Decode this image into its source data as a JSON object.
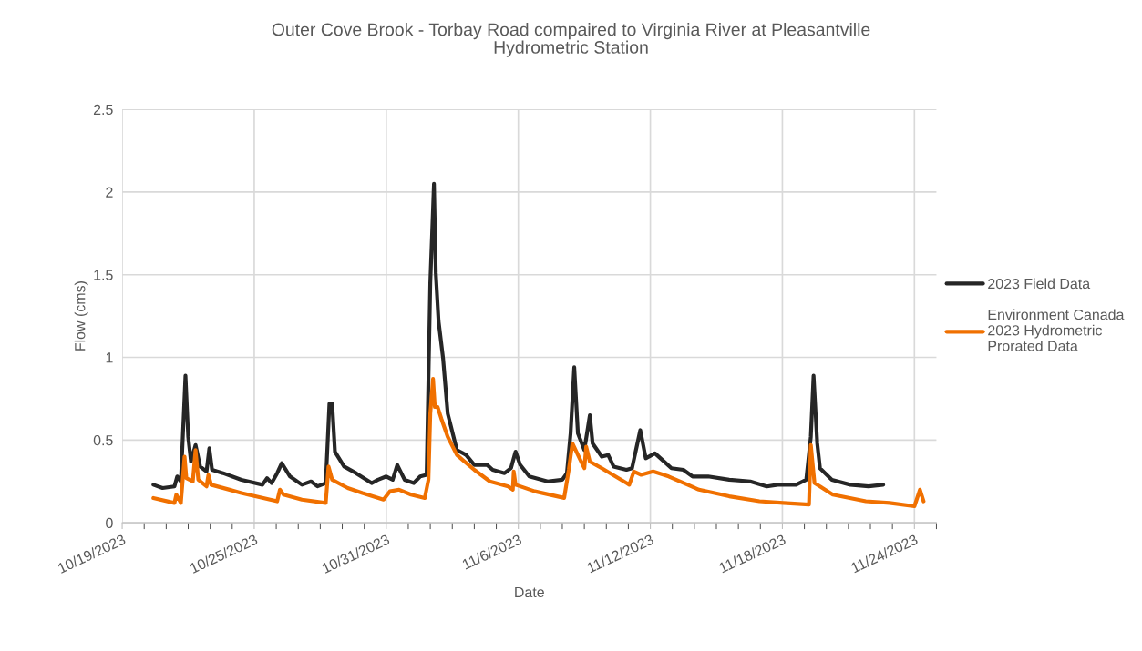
{
  "chart_data": {
    "type": "line",
    "title": "Outer Cove Brook - Torbay Road compaired to Virginia River at Pleasantville\nHydrometric Station",
    "xlabel": "Date",
    "ylabel": "Flow (cms)",
    "xlim": [
      "2023-10-19",
      "2023-11-25"
    ],
    "xticks": [
      {
        "value": "2023-10-19",
        "label": "10/19/2023"
      },
      {
        "value": "2023-10-25",
        "label": "10/25/2023"
      },
      {
        "value": "2023-10-31",
        "label": "10/31/2023"
      },
      {
        "value": "2023-11-06",
        "label": "11/6/2023"
      },
      {
        "value": "2023-11-12",
        "label": "11/12/2023"
      },
      {
        "value": "2023-11-18",
        "label": "11/18/2023"
      },
      {
        "value": "2023-11-24",
        "label": "11/24/2023"
      }
    ],
    "ylim": [
      0,
      2.5
    ],
    "yticks": [
      0,
      0.5,
      1,
      1.5,
      2,
      2.5
    ],
    "grid": true,
    "legend": "right",
    "marker": "none",
    "line_style": "solid",
    "series": [
      {
        "name": "2023 Field Data",
        "color": "#262626",
        "x": [
          "2023-10-20T10:00",
          "2023-10-20T20:00",
          "2023-10-21T09:00",
          "2023-10-21T12:00",
          "2023-10-21T16:00",
          "2023-10-21T21:00",
          "2023-10-22T00:00",
          "2023-10-22T03:00",
          "2023-10-22T08:00",
          "2023-10-22T13:00",
          "2023-10-22T20:00",
          "2023-10-22T23:00",
          "2023-10-23T02:00",
          "2023-10-23T14:00",
          "2023-10-24T10:00",
          "2023-10-25T09:00",
          "2023-10-25T14:00",
          "2023-10-25T19:00",
          "2023-10-26T01:00",
          "2023-10-26T06:00",
          "2023-10-26T15:00",
          "2023-10-27T04:00",
          "2023-10-27T14:00",
          "2023-10-27T21:00",
          "2023-10-28T06:00",
          "2023-10-28T10:00",
          "2023-10-28T13:00",
          "2023-10-28T16:00",
          "2023-10-29T02:00",
          "2023-10-29T15:00",
          "2023-10-30T08:00",
          "2023-10-30T15:00",
          "2023-10-31T00:00",
          "2023-10-31T07:00",
          "2023-10-31T12:00",
          "2023-10-31T20:00",
          "2023-11-01T06:00",
          "2023-11-01T13:00",
          "2023-11-01T20:00",
          "2023-11-02T00:00",
          "2023-11-02T04:00",
          "2023-11-02T06:00",
          "2023-11-02T09:00",
          "2023-11-02T14:00",
          "2023-11-02T19:00",
          "2023-11-03T05:00",
          "2023-11-03T15:00",
          "2023-11-04T00:00",
          "2023-11-04T14:00",
          "2023-11-04T20:00",
          "2023-11-05T09:00",
          "2023-11-05T16:00",
          "2023-11-05T21:00",
          "2023-11-06T02:00",
          "2023-11-06T12:00",
          "2023-11-07T08:00",
          "2023-11-08T00:00",
          "2023-11-08T05:00",
          "2023-11-08T09:00",
          "2023-11-08T13:00",
          "2023-11-08T17:00",
          "2023-11-09T00:00",
          "2023-11-09T06:00",
          "2023-11-09T09:00",
          "2023-11-09T19:00",
          "2023-11-10T02:00",
          "2023-11-10T08:00",
          "2023-11-10T22:00",
          "2023-11-11T04:00",
          "2023-11-11T13:00",
          "2023-11-11T19:00",
          "2023-11-12T05:00",
          "2023-11-12T13:00",
          "2023-11-12T23:00",
          "2023-11-13T12:00",
          "2023-11-13T22:00",
          "2023-11-14T15:00",
          "2023-11-15T14:00",
          "2023-11-16T13:00",
          "2023-11-17T07:00",
          "2023-11-17T19:00",
          "2023-11-18T15:00",
          "2023-11-19T02:00",
          "2023-11-19T07:00",
          "2023-11-19T10:00",
          "2023-11-19T14:00",
          "2023-11-19T17:00",
          "2023-11-20T06:00",
          "2023-11-21T02:00",
          "2023-11-21T22:00",
          "2023-11-22T14:00"
        ],
        "values": [
          0.23,
          0.21,
          0.22,
          0.28,
          0.25,
          0.89,
          0.52,
          0.37,
          0.47,
          0.34,
          0.31,
          0.45,
          0.32,
          0.3,
          0.26,
          0.23,
          0.27,
          0.24,
          0.3,
          0.36,
          0.28,
          0.23,
          0.25,
          0.22,
          0.24,
          0.72,
          0.72,
          0.43,
          0.34,
          0.3,
          0.24,
          0.26,
          0.28,
          0.26,
          0.35,
          0.26,
          0.24,
          0.28,
          0.29,
          1.45,
          2.05,
          1.51,
          1.22,
          0.99,
          0.66,
          0.44,
          0.41,
          0.35,
          0.35,
          0.32,
          0.3,
          0.33,
          0.43,
          0.35,
          0.28,
          0.25,
          0.26,
          0.3,
          0.54,
          0.94,
          0.54,
          0.44,
          0.65,
          0.48,
          0.4,
          0.41,
          0.34,
          0.32,
          0.33,
          0.56,
          0.39,
          0.42,
          0.38,
          0.33,
          0.32,
          0.28,
          0.28,
          0.26,
          0.25,
          0.22,
          0.23,
          0.23,
          0.26,
          0.52,
          0.89,
          0.48,
          0.33,
          0.26,
          0.23,
          0.22,
          0.23
        ]
      },
      {
        "name": "Environment Canada 2023 Hydrometric Prorated Data",
        "color": "#f07000",
        "x": [
          "2023-10-20T10:00",
          "2023-10-21T09:00",
          "2023-10-21T11:00",
          "2023-10-21T16:00",
          "2023-10-21T20:00",
          "2023-10-21T22:00",
          "2023-10-22T05:00",
          "2023-10-22T08:00",
          "2023-10-22T11:00",
          "2023-10-22T20:00",
          "2023-10-22T22:00",
          "2023-10-23T01:00",
          "2023-10-24T10:00",
          "2023-10-26T01:00",
          "2023-10-26T04:00",
          "2023-10-26T08:00",
          "2023-10-27T04:00",
          "2023-10-28T06:00",
          "2023-10-28T09:00",
          "2023-10-28T13:00",
          "2023-10-29T06:00",
          "2023-10-29T22:00",
          "2023-10-30T21:00",
          "2023-10-31T04:00",
          "2023-10-31T14:00",
          "2023-11-01T03:00",
          "2023-11-01T18:00",
          "2023-11-01T22:00",
          "2023-11-02T00:00",
          "2023-11-02T03:00",
          "2023-11-02T05:00",
          "2023-11-02T08:00",
          "2023-11-02T12:00",
          "2023-11-02T19:00",
          "2023-11-03T05:00",
          "2023-11-04T00:00",
          "2023-11-04T17:00",
          "2023-11-05T13:00",
          "2023-11-05T18:00",
          "2023-11-05T19:00",
          "2023-11-05T21:00",
          "2023-11-06T18:00",
          "2023-11-08T02:00",
          "2023-11-08T07:00",
          "2023-11-08T11:00",
          "2023-11-08T17:00",
          "2023-11-09T00:00",
          "2023-11-09T02:00",
          "2023-11-09T06:00",
          "2023-11-09T19:00",
          "2023-11-10T22:00",
          "2023-11-11T01:00",
          "2023-11-11T06:00",
          "2023-11-11T14:00",
          "2023-11-12T03:00",
          "2023-11-12T20:00",
          "2023-11-14T05:00",
          "2023-11-15T14:00",
          "2023-11-16T23:00",
          "2023-11-18T01:00",
          "2023-11-19T05:00",
          "2023-11-19T07:00",
          "2023-11-19T11:00",
          "2023-11-19T17:00",
          "2023-11-20T07:00",
          "2023-11-21T19:00",
          "2023-11-22T21:00",
          "2023-11-24T00:00",
          "2023-11-24T06:00",
          "2023-11-24T10:00"
        ],
        "values": [
          0.15,
          0.12,
          0.17,
          0.12,
          0.4,
          0.27,
          0.25,
          0.44,
          0.26,
          0.22,
          0.29,
          0.23,
          0.18,
          0.13,
          0.2,
          0.17,
          0.14,
          0.12,
          0.34,
          0.26,
          0.21,
          0.18,
          0.14,
          0.19,
          0.2,
          0.17,
          0.15,
          0.26,
          0.66,
          0.87,
          0.7,
          0.7,
          0.63,
          0.52,
          0.41,
          0.32,
          0.25,
          0.22,
          0.2,
          0.31,
          0.23,
          0.19,
          0.15,
          0.32,
          0.48,
          0.41,
          0.33,
          0.46,
          0.37,
          0.33,
          0.24,
          0.23,
          0.31,
          0.29,
          0.31,
          0.28,
          0.2,
          0.16,
          0.13,
          0.12,
          0.11,
          0.47,
          0.24,
          0.22,
          0.17,
          0.13,
          0.12,
          0.1,
          0.2,
          0.13
        ]
      }
    ]
  }
}
